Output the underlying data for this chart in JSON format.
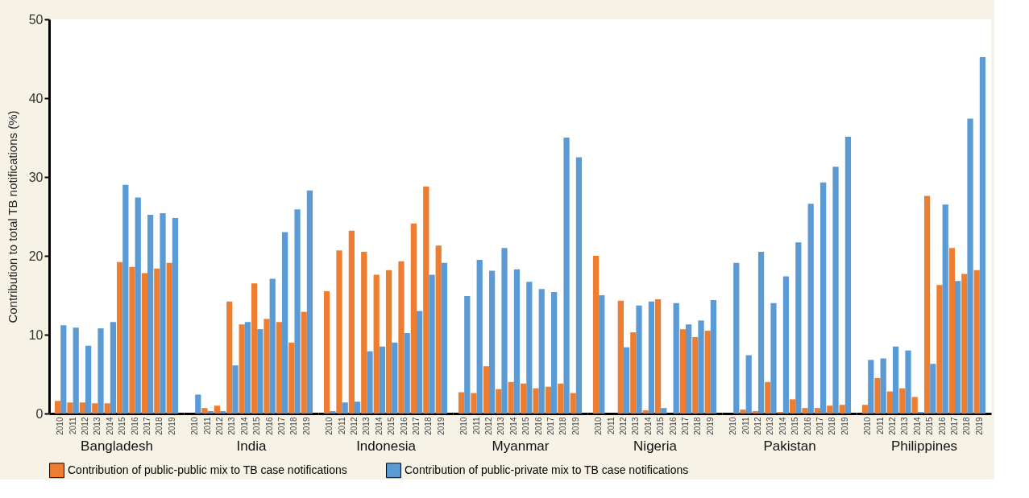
{
  "chart_data": [
    {
      "type": "bar",
      "xlabel": "Bangladesh",
      "ylabel": "Contribution to total TB notifications (%)",
      "categories": [
        "2010",
        "2011",
        "2012",
        "2013",
        "2014",
        "2015",
        "2016",
        "2017",
        "2018",
        "2019"
      ],
      "ylim": [
        0,
        50
      ],
      "yticks": [
        0,
        10,
        20,
        30,
        40,
        50
      ],
      "legend": "bottom",
      "series": [
        {
          "name": "Contribution of public-public mix to TB case notifications",
          "color": "#ed7d31",
          "values": [
            1.6,
            1.4,
            1.4,
            1.3,
            1.3,
            19.2,
            18.6,
            17.8,
            18.4,
            19.1
          ]
        },
        {
          "name": "Contribution of public-private mix to TB case notifications",
          "color": "#5b9bd5",
          "values": [
            11.2,
            10.9,
            8.6,
            10.8,
            11.6,
            29.0,
            27.4,
            25.2,
            25.4,
            24.8
          ]
        }
      ]
    },
    {
      "type": "bar",
      "xlabel": "India",
      "categories": [
        "2010",
        "2011",
        "2012",
        "2013",
        "2014",
        "2015",
        "2016",
        "2017",
        "2018",
        "2019"
      ],
      "ylim": [
        0,
        50
      ],
      "yticks": [
        0,
        10,
        20,
        30,
        40,
        50
      ],
      "tick_labels": "x",
      "series": [
        {
          "color": "#ed7d31",
          "values": [
            0,
            0.7,
            1.0,
            14.2,
            11.3,
            16.5,
            12.0,
            11.6,
            9.0,
            12.9
          ]
        },
        {
          "color": "#5b9bd5",
          "values": [
            2.4,
            0.3,
            0.3,
            6.1,
            11.6,
            10.7,
            17.1,
            23.0,
            25.9,
            28.3
          ]
        }
      ]
    },
    {
      "type": "bar",
      "xlabel": "Indonesia",
      "categories": [
        "2010",
        "2011",
        "2012",
        "2013",
        "2014",
        "2015",
        "2016",
        "2017",
        "2018",
        "2019"
      ],
      "ylim": [
        0,
        50
      ],
      "yticks": [
        0,
        10,
        20,
        30,
        40,
        50
      ],
      "tick_labels": "x",
      "series": [
        {
          "color": "#ed7d31",
          "values": [
            15.5,
            20.7,
            23.2,
            20.5,
            17.6,
            18.2,
            19.3,
            24.1,
            28.8,
            21.3
          ]
        },
        {
          "color": "#5b9bd5",
          "values": [
            0.3,
            1.4,
            1.5,
            7.9,
            8.5,
            9.0,
            10.2,
            13.0,
            17.6,
            19.1
          ]
        }
      ]
    },
    {
      "type": "bar",
      "xlabel": "Myanmar",
      "categories": [
        "2010",
        "2011",
        "2012",
        "2013",
        "2014",
        "2015",
        "2016",
        "2017",
        "2018",
        "2019"
      ],
      "ylim": [
        0,
        50
      ],
      "yticks": [
        0,
        10,
        20,
        30,
        40,
        50
      ],
      "tick_labels": "x",
      "series": [
        {
          "color": "#ed7d31",
          "values": [
            2.7,
            2.6,
            6.0,
            3.1,
            4.0,
            3.8,
            3.2,
            3.4,
            3.8,
            2.6
          ]
        },
        {
          "color": "#5b9bd5",
          "values": [
            14.9,
            19.5,
            18.1,
            21.0,
            18.3,
            16.7,
            15.8,
            15.4,
            35.0,
            32.5
          ]
        }
      ]
    },
    {
      "type": "bar",
      "xlabel": "Nigeria",
      "categories": [
        "2010",
        "2011",
        "2012",
        "2013",
        "2014",
        "2015",
        "2016",
        "2017",
        "2018",
        "2019"
      ],
      "ylim": [
        0,
        50
      ],
      "yticks": [
        0,
        10,
        20,
        30,
        40,
        50
      ],
      "tick_labels": "x",
      "series": [
        {
          "color": "#ed7d31",
          "values": [
            20.0,
            0,
            14.3,
            10.3,
            0.4,
            14.5,
            0,
            10.7,
            9.7,
            10.5
          ]
        },
        {
          "color": "#5b9bd5",
          "values": [
            15.0,
            0,
            8.4,
            13.7,
            14.2,
            0.7,
            14.0,
            11.3,
            11.8,
            14.4
          ]
        }
      ]
    },
    {
      "type": "bar",
      "xlabel": "Pakistan",
      "categories": [
        "2010",
        "2011",
        "2012",
        "2013",
        "2014",
        "2015",
        "2016",
        "2017",
        "2018",
        "2019"
      ],
      "ylim": [
        0,
        50
      ],
      "yticks": [
        0,
        10,
        20,
        30,
        40,
        50
      ],
      "tick_labels": "x",
      "series": [
        {
          "color": "#ed7d31",
          "values": [
            0,
            0.5,
            0.3,
            4.0,
            0.2,
            1.8,
            0.7,
            0.7,
            1.0,
            1.1
          ]
        },
        {
          "color": "#5b9bd5",
          "values": [
            19.1,
            7.4,
            20.5,
            14.0,
            17.4,
            21.7,
            26.6,
            29.3,
            31.3,
            35.1
          ]
        }
      ]
    },
    {
      "type": "bar",
      "xlabel": "Philippines",
      "categories": [
        "2010",
        "2011",
        "2012",
        "2013",
        "2014",
        "2015",
        "2016",
        "2017",
        "2018",
        "2019"
      ],
      "ylim": [
        0,
        50
      ],
      "yticks": [
        0,
        10,
        20,
        30,
        40,
        50
      ],
      "tick_labels": "x",
      "series": [
        {
          "color": "#ed7d31",
          "values": [
            1.1,
            4.5,
            2.8,
            3.2,
            2.1,
            27.6,
            16.3,
            21.0,
            17.7,
            18.2
          ]
        },
        {
          "color": "#5b9bd5",
          "values": [
            6.8,
            7.0,
            8.5,
            8.0,
            0.2,
            6.3,
            26.5,
            16.8,
            37.4,
            45.2
          ]
        }
      ]
    }
  ]
}
